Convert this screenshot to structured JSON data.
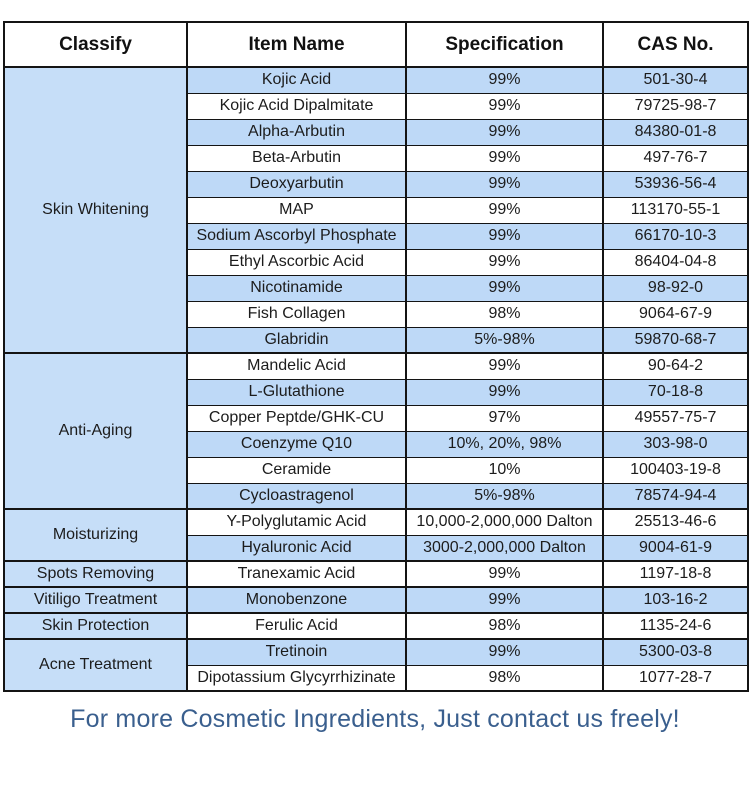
{
  "header": {
    "columns": [
      "Classify",
      "Item Name",
      "Specification",
      "CAS No."
    ]
  },
  "categories": [
    {
      "label": "Skin Whitening",
      "rows": [
        {
          "item": "Kojic Acid",
          "spec": "99%",
          "cas": "501-30-4"
        },
        {
          "item": "Kojic Acid Dipalmitate",
          "spec": "99%",
          "cas": "79725-98-7"
        },
        {
          "item": "Alpha-Arbutin",
          "spec": "99%",
          "cas": "84380-01-8"
        },
        {
          "item": "Beta-Arbutin",
          "spec": "99%",
          "cas": "497-76-7"
        },
        {
          "item": "Deoxyarbutin",
          "spec": "99%",
          "cas": "53936-56-4"
        },
        {
          "item": "MAP",
          "spec": "99%",
          "cas": "113170-55-1"
        },
        {
          "item": "Sodium Ascorbyl Phosphate",
          "spec": "99%",
          "cas": "66170-10-3"
        },
        {
          "item": "Ethyl Ascorbic Acid",
          "spec": "99%",
          "cas": "86404-04-8"
        },
        {
          "item": "Nicotinamide",
          "spec": "99%",
          "cas": "98-92-0"
        },
        {
          "item": "Fish Collagen",
          "spec": "98%",
          "cas": "9064-67-9"
        },
        {
          "item": "Glabridin",
          "spec": "5%-98%",
          "cas": "59870-68-7"
        }
      ]
    },
    {
      "label": "Anti-Aging",
      "rows": [
        {
          "item": "Mandelic Acid",
          "spec": "99%",
          "cas": "90-64-2"
        },
        {
          "item": "L-Glutathione",
          "spec": "99%",
          "cas": "70-18-8"
        },
        {
          "item": "Copper Peptde/GHK-CU",
          "spec": "97%",
          "cas": "49557-75-7"
        },
        {
          "item": "Coenzyme Q10",
          "spec": "10%, 20%, 98%",
          "cas": "303-98-0"
        },
        {
          "item": "Ceramide",
          "spec": "10%",
          "cas": "100403-19-8"
        },
        {
          "item": "Cycloastragenol",
          "spec": "5%-98%",
          "cas": "78574-94-4"
        }
      ]
    },
    {
      "label": "Moisturizing",
      "rows": [
        {
          "item": "Y-Polyglutamic Acid",
          "spec": "10,000-2,000,000 Dalton",
          "cas": "25513-46-6"
        },
        {
          "item": "Hyaluronic Acid",
          "spec": "3000-2,000,000 Dalton",
          "cas": "9004-61-9"
        }
      ]
    },
    {
      "label": "Spots Removing",
      "rows": [
        {
          "item": "Tranexamic Acid",
          "spec": "99%",
          "cas": "1197-18-8"
        }
      ]
    },
    {
      "label": "Vitiligo Treatment",
      "rows": [
        {
          "item": "Monobenzone",
          "spec": "99%",
          "cas": "103-16-2"
        }
      ]
    },
    {
      "label": "Skin Protection",
      "rows": [
        {
          "item": "Ferulic Acid",
          "spec": "98%",
          "cas": "1135-24-6"
        }
      ]
    },
    {
      "label": "Acne Treatment",
      "rows": [
        {
          "item": "Tretinoin",
          "spec": "99%",
          "cas": "5300-03-8"
        },
        {
          "item": "Dipotassium Glycyrrhizinate",
          "spec": "98%",
          "cas": "1077-28-7"
        }
      ]
    }
  ],
  "footer": {
    "text": "For more Cosmetic Ingredients, Just contact us freely!"
  },
  "colors": {
    "row_blue": "#bed9f7",
    "classify_blue": "#c6def8",
    "border": "#141414",
    "footer_text": "#3a5f8e"
  }
}
